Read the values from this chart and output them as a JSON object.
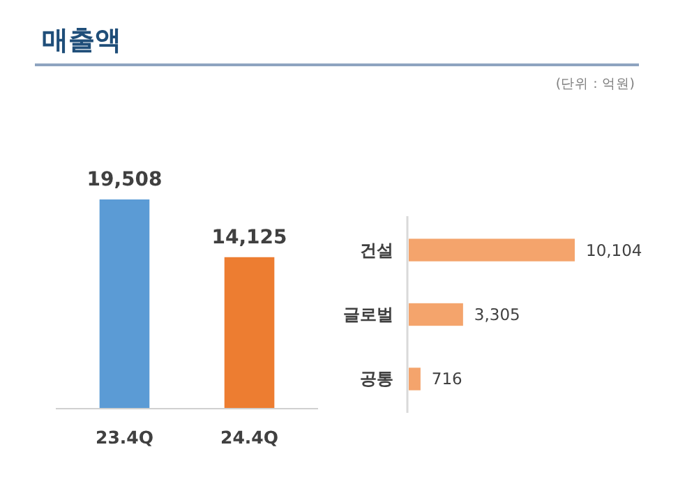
{
  "chart_data": [
    {
      "type": "bar",
      "title": "매출액",
      "categories": [
        "23.4Q",
        "24.4Q"
      ],
      "values": [
        19508,
        14125
      ],
      "colors": [
        "#5b9bd5",
        "#ed7d31"
      ],
      "value_labels": [
        "19,508",
        "14,125"
      ]
    },
    {
      "type": "bar",
      "subtitle": "(단위 : 억원)",
      "orientation": "horizontal",
      "categories": [
        "건설",
        "글로벌",
        "공통"
      ],
      "values": [
        10104,
        3305,
        716
      ],
      "color": "#f4a46c",
      "value_labels": [
        "10,104",
        "3,305",
        "716"
      ]
    }
  ]
}
